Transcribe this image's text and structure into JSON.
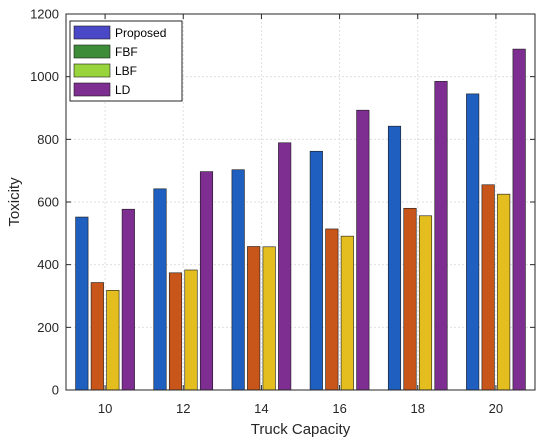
{
  "chart_data": {
    "type": "bar",
    "title": "",
    "xlabel": "Truck Capacity",
    "ylabel": "Toxicity",
    "categories": [
      "10",
      "12",
      "14",
      "16",
      "18",
      "20"
    ],
    "ylim": [
      0,
      1200
    ],
    "yticks": [
      0,
      200,
      400,
      600,
      800,
      1000,
      1200
    ],
    "grid": true,
    "legend_position": "top-left",
    "series": [
      {
        "name": "Proposed",
        "color": "#1f5fbf",
        "legend_color": "#4b48c8",
        "values": [
          552,
          642,
          703,
          762,
          842,
          945
        ]
      },
      {
        "name": "FBF",
        "color": "#c8561a",
        "legend_color": "#3d8c3a",
        "values": [
          343,
          374,
          458,
          514,
          580,
          655
        ]
      },
      {
        "name": "LBF",
        "color": "#e3be1e",
        "legend_color": "#9ad43d",
        "values": [
          318,
          383,
          457,
          491,
          556,
          625
        ]
      },
      {
        "name": "LD",
        "color": "#7e2d91",
        "legend_color": "#7e2d91",
        "values": [
          577,
          697,
          789,
          893,
          985,
          1088
        ]
      }
    ]
  }
}
